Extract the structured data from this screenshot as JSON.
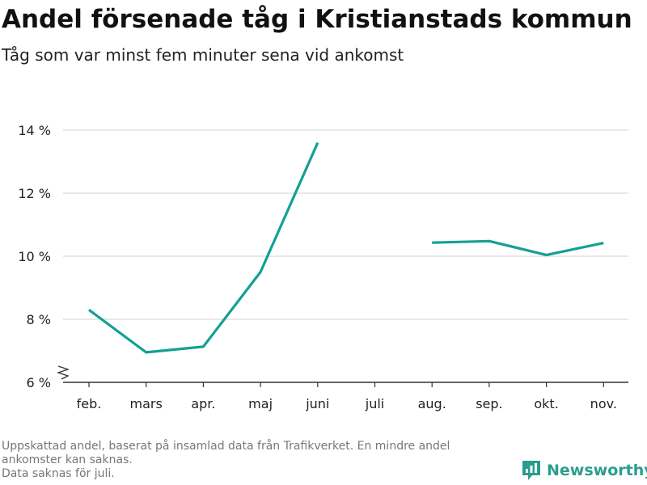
{
  "title": "Andel försenade tåg i Kristianstads kommun",
  "subtitle": "Tåg som var minst fem minuter sena vid ankomst",
  "footer": {
    "note_line1": "Uppskattad andel, baserat på insamlad data från Trafikverket. En mindre andel",
    "note_line2": "ankomster kan saknas.",
    "note_line3": "Data saknas för juli."
  },
  "brand": {
    "name": "Newsworthy",
    "icon": "newsworthy-logo-icon",
    "color": "#2a9d8f"
  },
  "chart_data": {
    "type": "line",
    "categories": [
      "feb.",
      "mars",
      "apr.",
      "maj",
      "juni",
      "juli",
      "aug.",
      "sep.",
      "okt.",
      "nov."
    ],
    "series": [
      {
        "values": [
          8.3,
          6.95,
          7.13,
          9.5,
          13.6,
          null,
          10.43,
          10.48,
          10.04,
          10.42
        ],
        "color": "#14a095"
      }
    ],
    "ylim": [
      6,
      14
    ],
    "yticks": [
      6,
      8,
      10,
      12,
      14
    ],
    "ytick_labels": [
      "6 %",
      "8 %",
      "10 %",
      "12 %",
      "14 %"
    ],
    "grid": true,
    "axis_break": true,
    "legend": "none",
    "xlabel": "",
    "ylabel": ""
  }
}
